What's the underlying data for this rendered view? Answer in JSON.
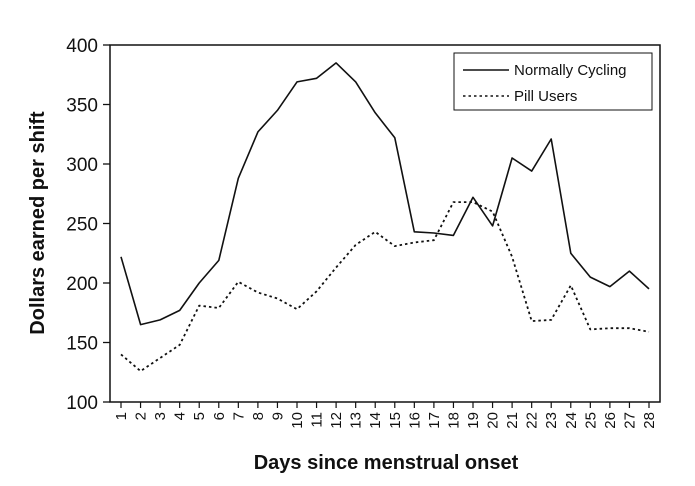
{
  "chart_data": {
    "type": "line",
    "xlabel": "Days since menstrual onset",
    "ylabel": "Dollars earned per shift",
    "ylim": [
      100,
      400
    ],
    "yticks": [
      100,
      150,
      200,
      250,
      300,
      350,
      400
    ],
    "x": [
      "1",
      "2",
      "3",
      "4",
      "5",
      "6",
      "7",
      "8",
      "9",
      "10",
      "11",
      "12",
      "13",
      "14",
      "15",
      "16",
      "17",
      "18",
      "19",
      "20",
      "21",
      "22",
      "23",
      "24",
      "25",
      "26",
      "27",
      "28"
    ],
    "legend_position": "top-right",
    "grid": false,
    "series": [
      {
        "name": "Normally Cycling",
        "style": "solid",
        "values": [
          222,
          165,
          169,
          177,
          200,
          219,
          288,
          327,
          345,
          369,
          372,
          385,
          369,
          343,
          322,
          243,
          242,
          240,
          272,
          248,
          305,
          294,
          321,
          225,
          205,
          197,
          210,
          195
        ]
      },
      {
        "name": "Pill Users",
        "style": "dotted",
        "values": [
          140,
          126,
          137,
          148,
          181,
          179,
          201,
          192,
          187,
          178,
          193,
          213,
          232,
          243,
          231,
          234,
          236,
          268,
          268,
          260,
          222,
          168,
          169,
          198,
          161,
          162,
          162,
          159
        ]
      }
    ]
  }
}
